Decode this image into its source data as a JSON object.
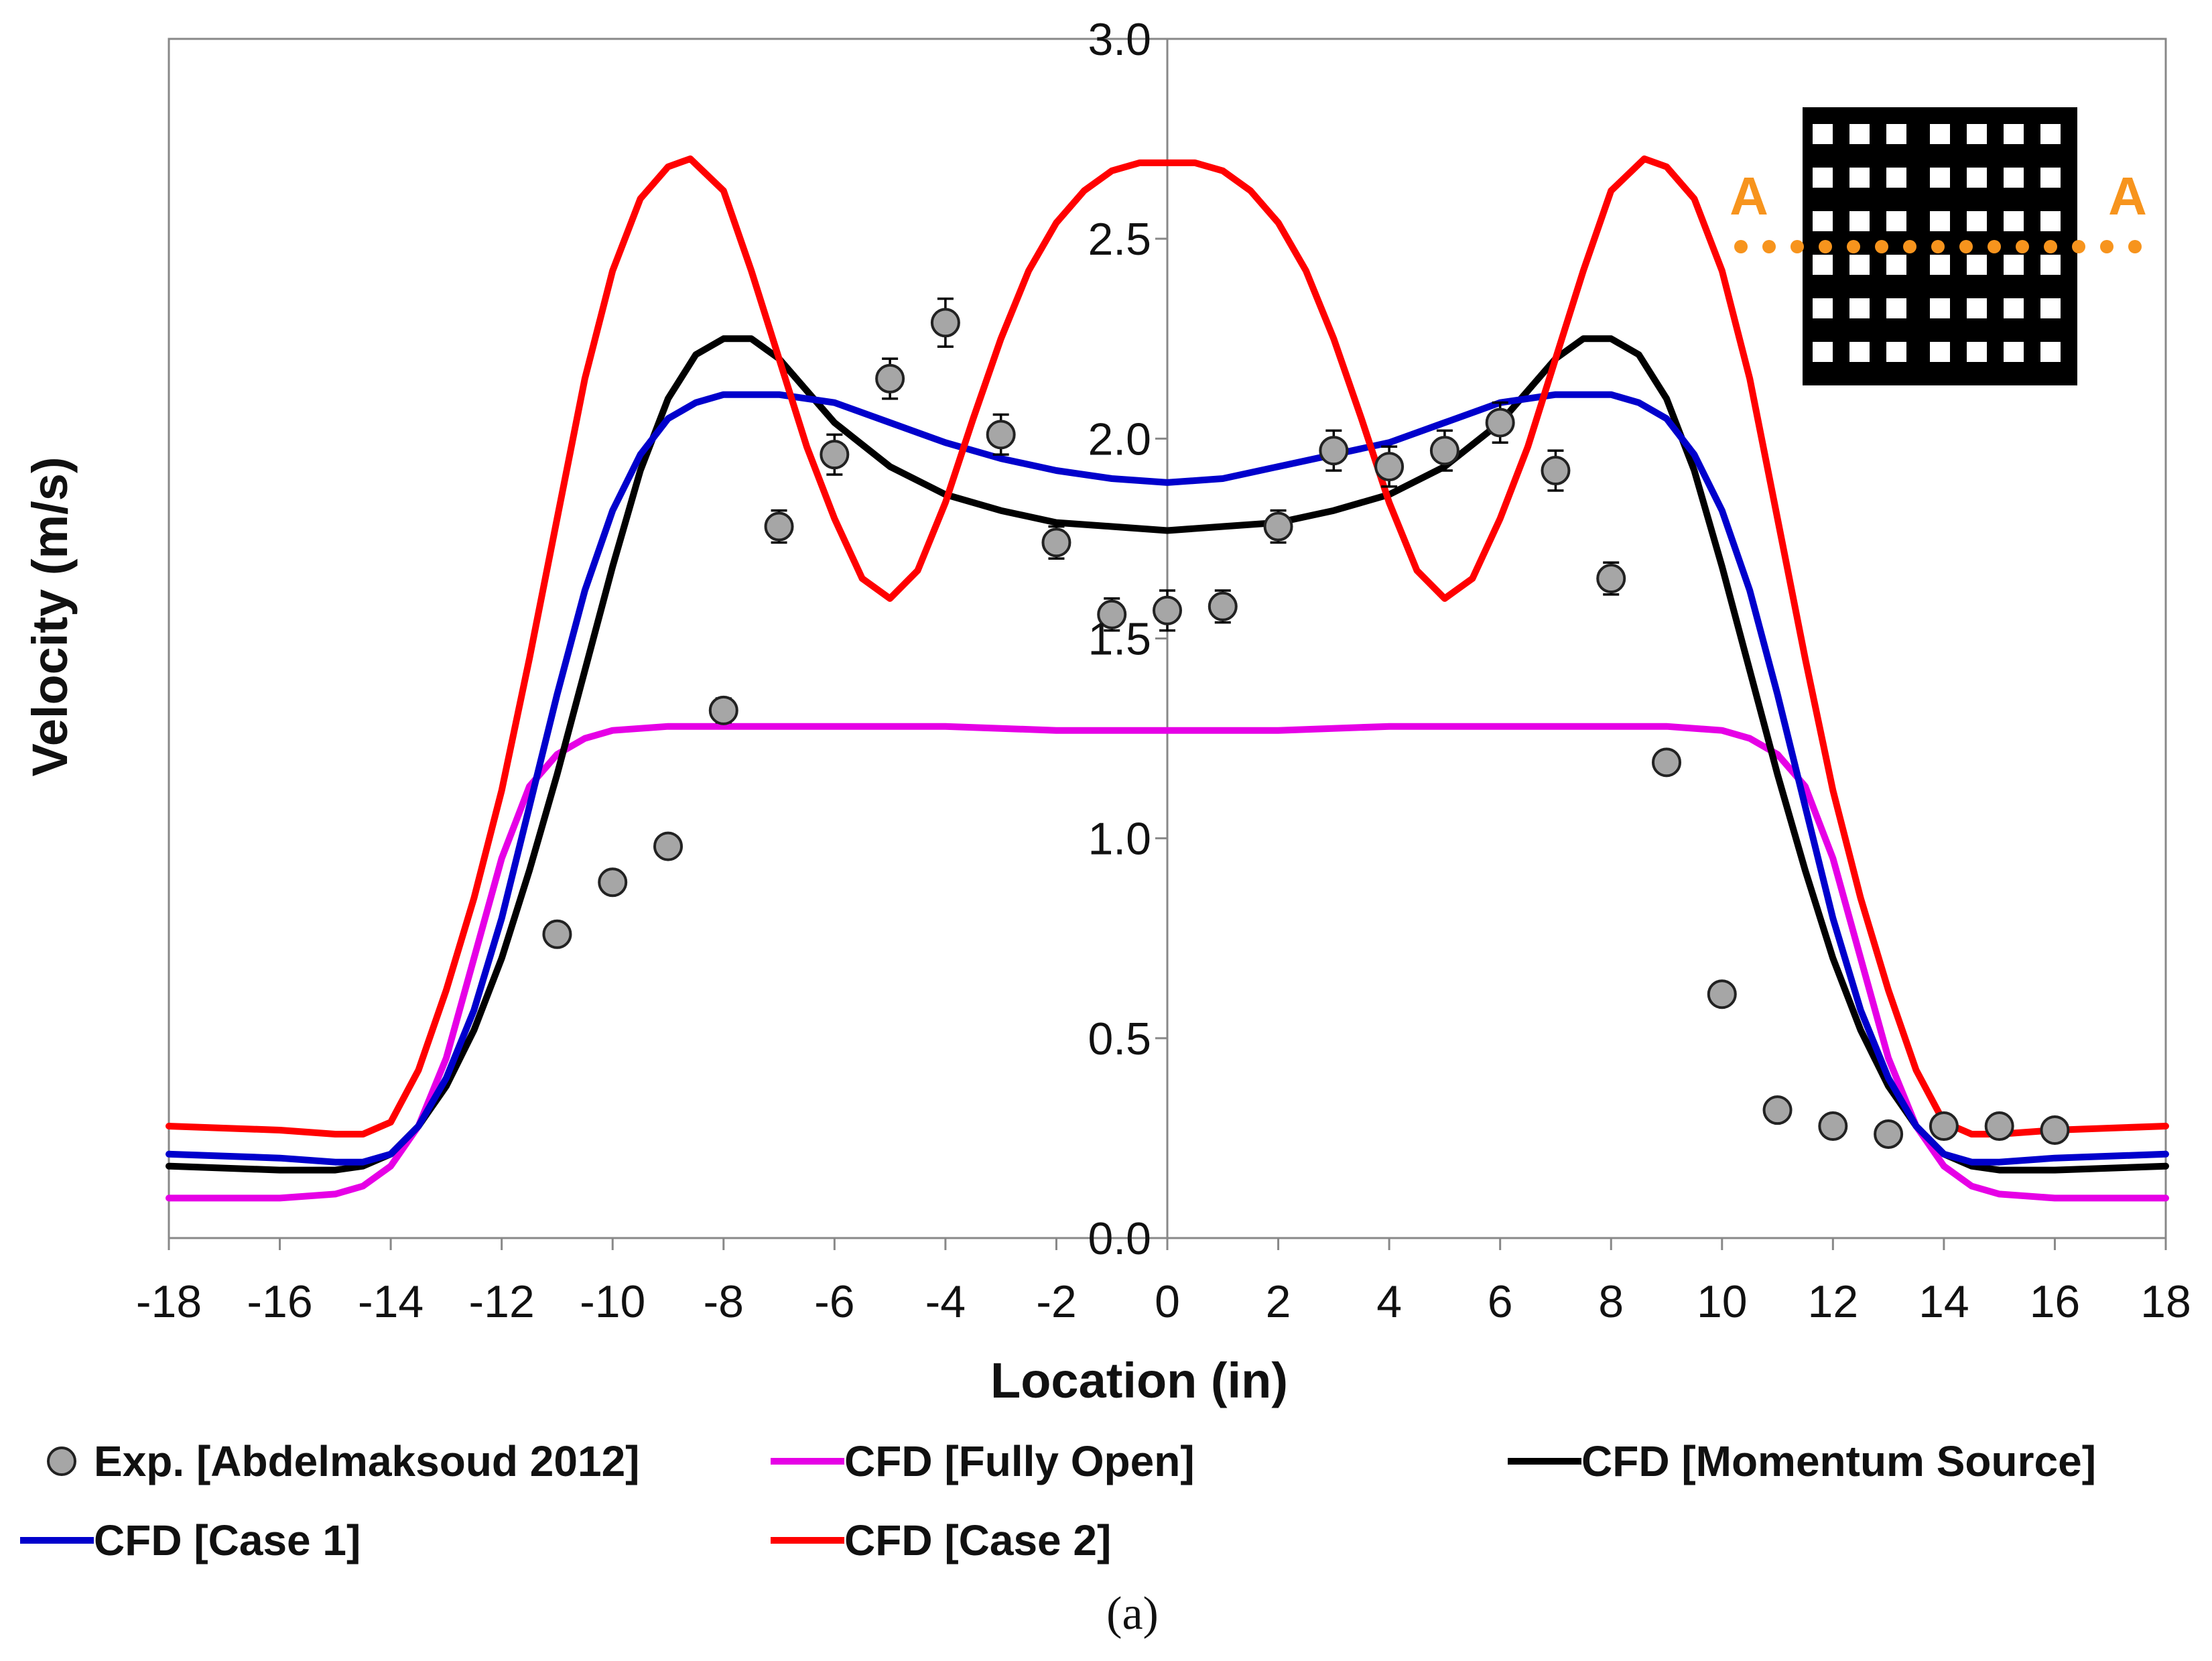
{
  "chart_data": {
    "type": "line",
    "title": "",
    "xlabel": "Location (in)",
    "ylabel": "Velocity (m/s)",
    "xlim": [
      -18,
      18
    ],
    "ylim": [
      0,
      3
    ],
    "xticks": [
      "-18",
      "-16",
      "-14",
      "-12",
      "-10",
      "-8",
      "-6",
      "-4",
      "-2",
      "0",
      "2",
      "4",
      "6",
      "8",
      "10",
      "12",
      "14",
      "16",
      "18"
    ],
    "yticks": [
      "0.0",
      "0.5",
      "1.0",
      "1.5",
      "2.0",
      "2.5",
      "3.0"
    ],
    "grid": false,
    "legend_position": "bottom",
    "caption": "(a)",
    "inset": {
      "label_left": "A",
      "label_right": "A",
      "color": "#F7941D"
    },
    "series": [
      {
        "name": "Exp. [Abdelmaksoud 2012]",
        "kind": "scatter",
        "color": "#A6A6A6",
        "points": [
          {
            "x": -11,
            "y": 0.76
          },
          {
            "x": -10,
            "y": 0.89
          },
          {
            "x": -9,
            "y": 0.98
          },
          {
            "x": -8,
            "y": 1.32,
            "err": 0.03
          },
          {
            "x": -7,
            "y": 1.78,
            "err": 0.04
          },
          {
            "x": -6,
            "y": 1.96,
            "err": 0.05
          },
          {
            "x": -5,
            "y": 2.15,
            "err": 0.05
          },
          {
            "x": -4,
            "y": 2.29,
            "err": 0.06
          },
          {
            "x": -3,
            "y": 2.01,
            "err": 0.05
          },
          {
            "x": -2,
            "y": 1.74,
            "err": 0.04
          },
          {
            "x": -1,
            "y": 1.56,
            "err": 0.04
          },
          {
            "x": 0,
            "y": 1.57,
            "err": 0.05
          },
          {
            "x": 1,
            "y": 1.58,
            "err": 0.04
          },
          {
            "x": 2,
            "y": 1.78,
            "err": 0.04
          },
          {
            "x": 3,
            "y": 1.97,
            "err": 0.05
          },
          {
            "x": 4,
            "y": 1.93,
            "err": 0.05
          },
          {
            "x": 5,
            "y": 1.97,
            "err": 0.05
          },
          {
            "x": 6,
            "y": 2.04,
            "err": 0.05
          },
          {
            "x": 7,
            "y": 1.92,
            "err": 0.05
          },
          {
            "x": 8,
            "y": 1.65,
            "err": 0.04
          },
          {
            "x": 9,
            "y": 1.19
          },
          {
            "x": 10,
            "y": 0.61
          },
          {
            "x": 11,
            "y": 0.32
          },
          {
            "x": 12,
            "y": 0.28
          },
          {
            "x": 13,
            "y": 0.26
          },
          {
            "x": 14,
            "y": 0.28
          },
          {
            "x": 15,
            "y": 0.28
          },
          {
            "x": 16,
            "y": 0.27
          }
        ]
      },
      {
        "name": "CFD [Fully Open]",
        "kind": "line",
        "color": "#E600E6",
        "x": [
          -18,
          -16,
          -15,
          -14.5,
          -14,
          -13.5,
          -13,
          -12.5,
          -12,
          -11.5,
          -11,
          -10.5,
          -10,
          -9,
          -8,
          -6,
          -4,
          -2,
          0,
          2,
          4,
          6,
          8,
          9,
          10,
          10.5,
          11,
          11.5,
          12,
          12.5,
          13,
          13.5,
          14,
          14.5,
          15,
          16,
          18
        ],
        "y": [
          0.1,
          0.1,
          0.11,
          0.13,
          0.18,
          0.28,
          0.45,
          0.7,
          0.95,
          1.13,
          1.21,
          1.25,
          1.27,
          1.28,
          1.28,
          1.28,
          1.28,
          1.27,
          1.27,
          1.27,
          1.28,
          1.28,
          1.28,
          1.28,
          1.27,
          1.25,
          1.21,
          1.13,
          0.95,
          0.7,
          0.45,
          0.28,
          0.18,
          0.13,
          0.11,
          0.1,
          0.1
        ]
      },
      {
        "name": "CFD [Momentum Source]",
        "kind": "line",
        "color": "#000000",
        "x": [
          -18,
          -16,
          -15,
          -14.5,
          -14,
          -13.5,
          -13,
          -12.5,
          -12,
          -11.5,
          -11,
          -10.5,
          -10,
          -9.5,
          -9,
          -8.5,
          -8,
          -7.5,
          -7,
          -6.5,
          -6,
          -5,
          -4,
          -3,
          -2,
          -1,
          0,
          1,
          2,
          3,
          4,
          5,
          6,
          6.5,
          7,
          7.5,
          8,
          8.5,
          9,
          9.5,
          10,
          10.5,
          11,
          11.5,
          12,
          12.5,
          13,
          13.5,
          14,
          14.5,
          15,
          16,
          18
        ],
        "y": [
          0.18,
          0.17,
          0.17,
          0.18,
          0.21,
          0.28,
          0.38,
          0.52,
          0.7,
          0.92,
          1.16,
          1.42,
          1.68,
          1.92,
          2.1,
          2.21,
          2.25,
          2.25,
          2.2,
          2.12,
          2.04,
          1.93,
          1.86,
          1.82,
          1.79,
          1.78,
          1.77,
          1.78,
          1.79,
          1.82,
          1.86,
          1.93,
          2.04,
          2.12,
          2.2,
          2.25,
          2.25,
          2.21,
          2.1,
          1.92,
          1.68,
          1.42,
          1.16,
          0.92,
          0.7,
          0.52,
          0.38,
          0.28,
          0.21,
          0.18,
          0.17,
          0.17,
          0.18
        ]
      },
      {
        "name": "CFD [Case 1]",
        "kind": "line",
        "color": "#0000CC",
        "x": [
          -18,
          -16,
          -15,
          -14.5,
          -14,
          -13.5,
          -13,
          -12.5,
          -12,
          -11.5,
          -11,
          -10.5,
          -10,
          -9.5,
          -9,
          -8.5,
          -8,
          -7,
          -6,
          -5,
          -4,
          -3,
          -2,
          -1,
          0,
          1,
          2,
          3,
          4,
          5,
          6,
          7,
          8,
          8.5,
          9,
          9.5,
          10,
          10.5,
          11,
          11.5,
          12,
          12.5,
          13,
          13.5,
          14,
          14.5,
          15,
          16,
          18
        ],
        "y": [
          0.21,
          0.2,
          0.19,
          0.19,
          0.21,
          0.28,
          0.4,
          0.57,
          0.8,
          1.08,
          1.36,
          1.62,
          1.82,
          1.96,
          2.05,
          2.09,
          2.11,
          2.11,
          2.09,
          2.04,
          1.99,
          1.95,
          1.92,
          1.9,
          1.89,
          1.9,
          1.93,
          1.96,
          1.99,
          2.04,
          2.09,
          2.11,
          2.11,
          2.09,
          2.05,
          1.96,
          1.82,
          1.62,
          1.36,
          1.08,
          0.8,
          0.57,
          0.4,
          0.28,
          0.21,
          0.19,
          0.19,
          0.2,
          0.21
        ]
      },
      {
        "name": "CFD [Case 2]",
        "kind": "line",
        "color": "#FF0000",
        "x": [
          -18,
          -16,
          -15,
          -14.5,
          -14,
          -13.5,
          -13,
          -12.5,
          -12,
          -11.5,
          -11,
          -10.5,
          -10,
          -9.5,
          -9,
          -8.6,
          -8,
          -7.5,
          -7,
          -6.5,
          -6,
          -5.5,
          -5,
          -4.5,
          -4,
          -3.5,
          -3,
          -2.5,
          -2,
          -1.5,
          -1,
          -0.5,
          0,
          0.5,
          1,
          1.5,
          2,
          2.5,
          3,
          3.5,
          4,
          4.5,
          5,
          5.5,
          6,
          6.5,
          7,
          7.5,
          8,
          8.6,
          9,
          9.5,
          10,
          10.5,
          11,
          11.5,
          12,
          12.5,
          13,
          13.5,
          14,
          14.5,
          15,
          16,
          18
        ],
        "y": [
          0.28,
          0.27,
          0.26,
          0.26,
          0.29,
          0.42,
          0.62,
          0.85,
          1.12,
          1.45,
          1.8,
          2.15,
          2.42,
          2.6,
          2.68,
          2.7,
          2.62,
          2.42,
          2.2,
          1.98,
          1.8,
          1.65,
          1.6,
          1.67,
          1.84,
          2.05,
          2.25,
          2.42,
          2.54,
          2.62,
          2.67,
          2.69,
          2.69,
          2.69,
          2.67,
          2.62,
          2.54,
          2.42,
          2.25,
          2.05,
          1.84,
          1.67,
          1.6,
          1.65,
          1.8,
          1.98,
          2.2,
          2.42,
          2.62,
          2.7,
          2.68,
          2.6,
          2.42,
          2.15,
          1.8,
          1.45,
          1.12,
          0.85,
          0.62,
          0.42,
          0.29,
          0.26,
          0.26,
          0.27,
          0.28
        ]
      }
    ]
  }
}
